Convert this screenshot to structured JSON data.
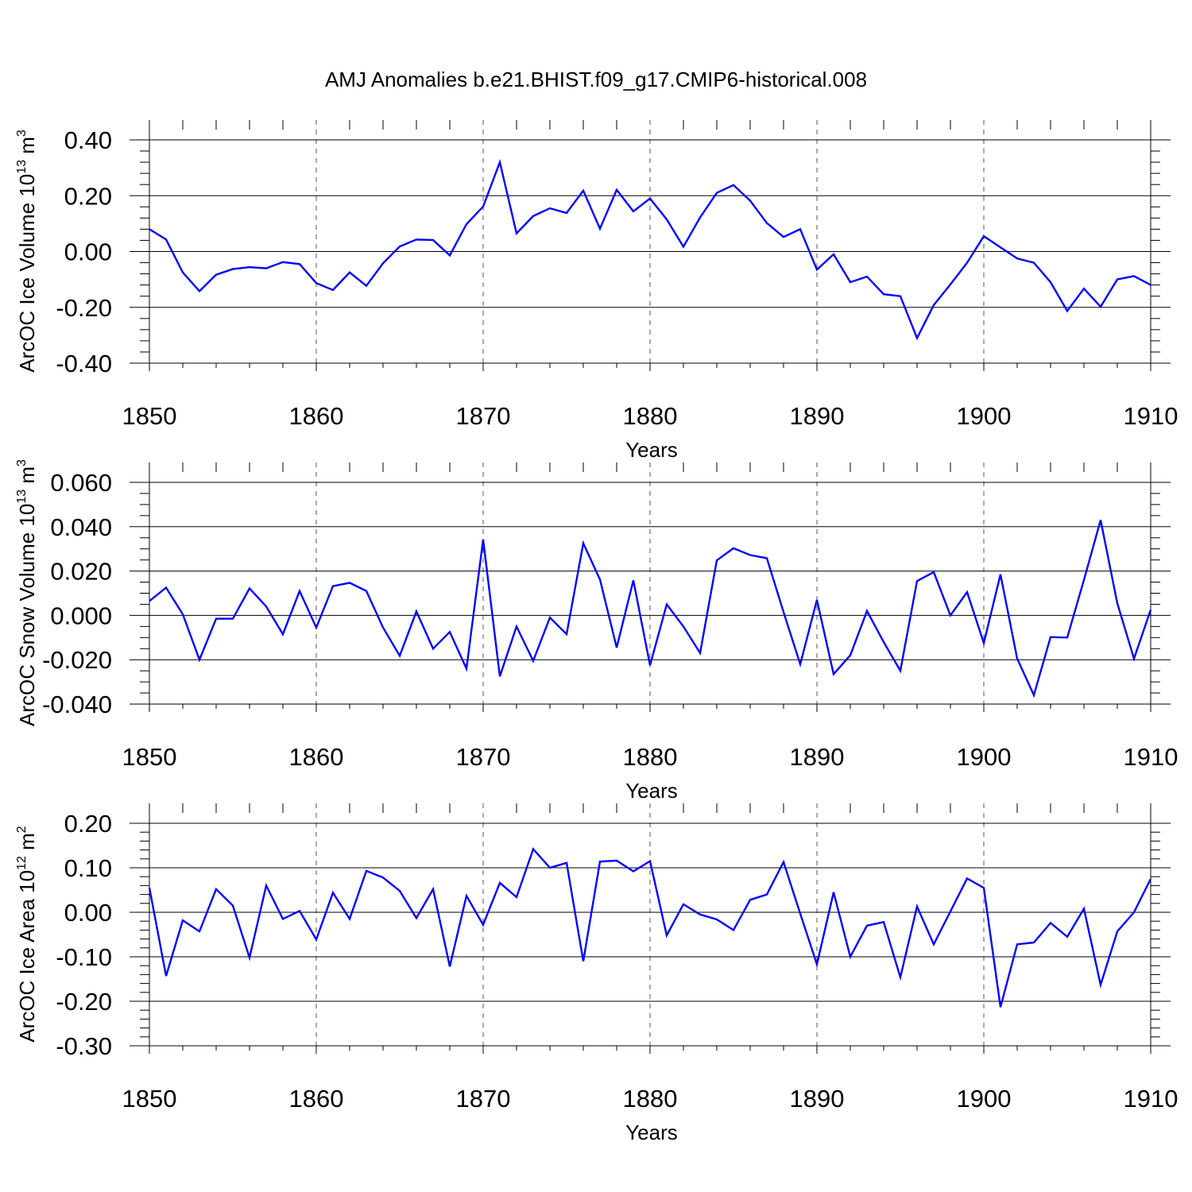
{
  "chart_data": [
    {
      "type": "line",
      "title": "AMJ Anomalies b.e21.BHIST.f09_g17.CMIP6-historical.008",
      "ylabel_parts": [
        "ArcOC Ice Volume 10",
        "13",
        " m",
        "3"
      ],
      "xlabel": "Years",
      "xlim": [
        1850,
        1910
      ],
      "ylim": [
        -0.4,
        0.4
      ],
      "x_ticks": [
        "1850",
        "1860",
        "1870",
        "1880",
        "1890",
        "1900",
        "1910"
      ],
      "y_ticks": [
        {
          "v": 0.4,
          "label": "0.40"
        },
        {
          "v": 0.2,
          "label": "0.20"
        },
        {
          "v": 0.0,
          "label": "0.00"
        },
        {
          "v": -0.2,
          "label": "-0.20"
        },
        {
          "v": -0.4,
          "label": "-0.40"
        }
      ],
      "y_minor_step": 0.04,
      "color": "#0000ff",
      "x_start": 1850,
      "values": [
        0.08,
        0.043,
        -0.075,
        -0.142,
        -0.083,
        -0.063,
        -0.056,
        -0.06,
        -0.038,
        -0.045,
        -0.113,
        -0.138,
        -0.075,
        -0.123,
        -0.042,
        0.018,
        0.043,
        0.041,
        -0.014,
        0.098,
        0.161,
        0.32,
        0.065,
        0.127,
        0.155,
        0.138,
        0.218,
        0.082,
        0.221,
        0.144,
        0.19,
        0.115,
        0.017,
        0.122,
        0.21,
        0.238,
        0.182,
        0.102,
        0.052,
        0.08,
        -0.065,
        -0.01,
        -0.11,
        -0.09,
        -0.153,
        -0.16,
        -0.31,
        -0.192,
        -0.118,
        -0.04,
        0.055,
        0.015,
        -0.025,
        -0.04,
        -0.11,
        -0.213,
        -0.133,
        -0.198,
        -0.1,
        -0.088,
        -0.12
      ]
    },
    {
      "type": "line",
      "ylabel_parts": [
        "ArcOC Snow Volume 10",
        "13",
        " m",
        "3"
      ],
      "xlabel": "Years",
      "xlim": [
        1850,
        1910
      ],
      "ylim": [
        -0.04,
        0.06
      ],
      "x_ticks": [
        "1850",
        "1860",
        "1870",
        "1880",
        "1890",
        "1900",
        "1910"
      ],
      "y_ticks": [
        {
          "v": 0.06,
          "label": "0.060"
        },
        {
          "v": 0.04,
          "label": "0.040"
        },
        {
          "v": 0.02,
          "label": "0.020"
        },
        {
          "v": 0.0,
          "label": "0.000"
        },
        {
          "v": -0.02,
          "label": "-0.020"
        },
        {
          "v": -0.04,
          "label": "-0.040"
        }
      ],
      "y_minor_step": 0.005,
      "color": "#0000ff",
      "x_start": 1850,
      "values": [
        0.0065,
        0.0125,
        0.0005,
        -0.02,
        -0.0015,
        -0.0015,
        0.0122,
        0.004,
        -0.0085,
        0.011,
        -0.0055,
        0.0132,
        0.0147,
        0.011,
        -0.0055,
        -0.0182,
        0.0018,
        -0.015,
        -0.0075,
        -0.024,
        0.0342,
        -0.0275,
        -0.005,
        -0.0205,
        -0.001,
        -0.0085,
        0.0325,
        0.0162,
        -0.0145,
        0.0158,
        -0.0225,
        0.005,
        -0.005,
        -0.017,
        0.0248,
        0.0303,
        0.0272,
        0.0258,
        0.0015,
        -0.022,
        0.007,
        -0.0265,
        -0.018,
        0.002,
        -0.012,
        -0.025,
        0.0155,
        0.0195,
        0.0,
        0.0105,
        -0.0125,
        0.0185,
        -0.0195,
        -0.036,
        -0.0098,
        -0.01,
        0.016,
        0.043,
        0.0055,
        -0.0195,
        0.0025
      ]
    },
    {
      "type": "line",
      "ylabel_parts": [
        "ArcOC Ice Area 10",
        "12",
        " m",
        "2"
      ],
      "xlabel": "Years",
      "xlim": [
        1850,
        1910
      ],
      "ylim": [
        -0.3,
        0.2
      ],
      "x_ticks": [
        "1850",
        "1860",
        "1870",
        "1880",
        "1890",
        "1900",
        "1910"
      ],
      "y_ticks": [
        {
          "v": 0.2,
          "label": "0.20"
        },
        {
          "v": 0.1,
          "label": "0.10"
        },
        {
          "v": 0.0,
          "label": "0.00"
        },
        {
          "v": -0.1,
          "label": "-0.10"
        },
        {
          "v": -0.2,
          "label": "-0.20"
        },
        {
          "v": -0.3,
          "label": "-0.30"
        }
      ],
      "y_minor_step": 0.02,
      "color": "#0000ff",
      "x_start": 1850,
      "values": [
        0.055,
        -0.143,
        -0.018,
        -0.043,
        0.052,
        0.015,
        -0.102,
        0.06,
        -0.015,
        0.003,
        -0.061,
        0.044,
        -0.015,
        0.093,
        0.078,
        0.048,
        -0.013,
        0.052,
        -0.122,
        0.037,
        -0.028,
        0.066,
        0.034,
        0.142,
        0.1,
        0.111,
        -0.11,
        0.114,
        0.116,
        0.092,
        0.115,
        -0.052,
        0.018,
        -0.005,
        -0.016,
        -0.04,
        0.028,
        0.04,
        0.113,
        -0.003,
        -0.117,
        0.045,
        -0.1,
        -0.03,
        -0.022,
        -0.146,
        0.013,
        -0.072,
        0.002,
        0.076,
        0.055,
        -0.213,
        -0.072,
        -0.068,
        -0.024,
        -0.055,
        0.008,
        -0.163,
        -0.043,
        0.0,
        0.075
      ]
    }
  ]
}
